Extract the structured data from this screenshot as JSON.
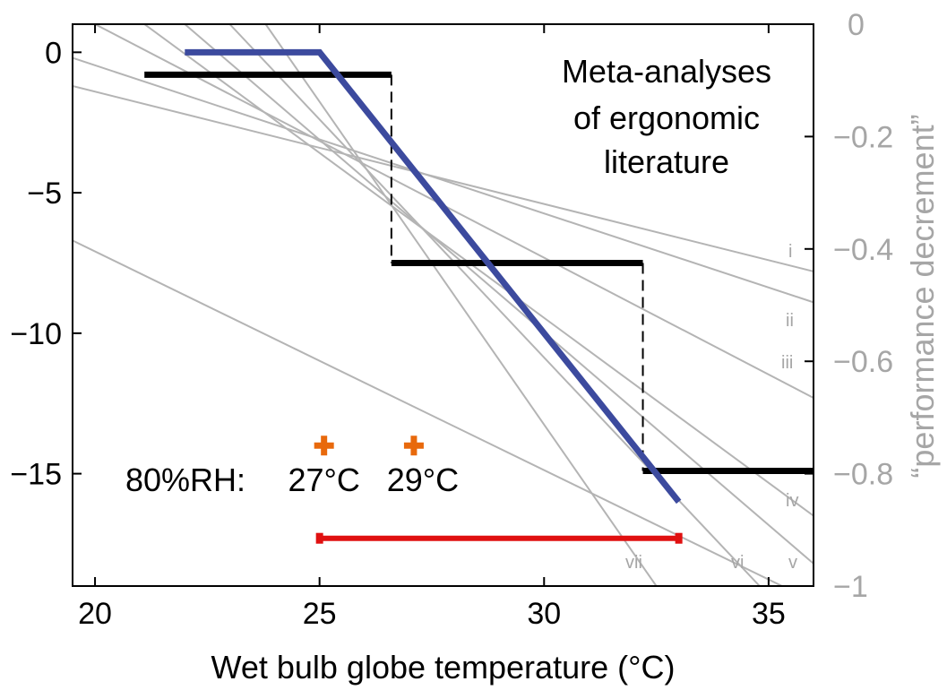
{
  "chart_data": {
    "type": "line",
    "title": "",
    "xlabel": "Wet bulb globe temperature (°C)",
    "ylabel_left": "",
    "ylabel_right": "“performance decrement”",
    "xlim": [
      19.5,
      36
    ],
    "ylim_left": [
      -19,
      1
    ],
    "ylim_right": [
      -1,
      0
    ],
    "x_ticks": [
      20,
      25,
      30,
      35
    ],
    "y_ticks_left": [
      0,
      -5,
      -10,
      -15
    ],
    "y_ticks_right": [
      0,
      -0.2,
      -0.4,
      -0.6,
      -0.8,
      -1
    ],
    "y_tick_labels_left": [
      "0",
      "−5",
      "−10",
      "−15"
    ],
    "y_tick_labels_right": [
      "0",
      "−0.2",
      "−0.4",
      "−0.6",
      "−0.8",
      "−1"
    ],
    "grid": false,
    "annotation": {
      "lines": [
        "Meta-analyses",
        "of ergonomic",
        "literature"
      ]
    },
    "rh_annotation": {
      "prefix": "80%RH:",
      "markers": [
        {
          "x": 25.1,
          "y": -14,
          "label": "27°C",
          "color": "#e8690c"
        },
        {
          "x": 27.1,
          "y": -14,
          "label": "29°C",
          "color": "#e8690c"
        }
      ]
    },
    "step_series": {
      "color": "#000000",
      "segments": [
        {
          "x": [
            21.1,
            26.6
          ],
          "y": -0.8
        },
        {
          "x": [
            26.6,
            32.2
          ],
          "y": -7.5
        },
        {
          "x": [
            32.2,
            36
          ],
          "y": -14.9
        }
      ]
    },
    "blue_series": {
      "color": "#3c4a9e",
      "x": [
        22,
        25,
        33
      ],
      "y": [
        0,
        0,
        -16
      ]
    },
    "red_range": {
      "color": "#e01010",
      "x": [
        25,
        33
      ],
      "y": -17.3
    },
    "gray_lines": {
      "color": "#b4b4b4",
      "lines": [
        {
          "label": "i",
          "x": [
            19.5,
            36
          ],
          "y": [
            -1.2,
            -7.8
          ]
        },
        {
          "label": "ii",
          "x": [
            19.5,
            36
          ],
          "y": [
            -0.2,
            -8.9
          ]
        },
        {
          "label": "iii",
          "x": [
            20.0,
            36
          ],
          "y": [
            1.0,
            -12.3
          ]
        },
        {
          "label": "iv",
          "x": [
            21.1,
            36
          ],
          "y": [
            1.0,
            -16.5
          ]
        },
        {
          "label": "v",
          "x": [
            22.0,
            36
          ],
          "y": [
            1.0,
            -18.2
          ]
        },
        {
          "label": "vi",
          "x": [
            23.0,
            34.8
          ],
          "y": [
            1.0,
            -19.0
          ]
        },
        {
          "label": "vii",
          "x": [
            23.8,
            32.5
          ],
          "y": [
            1.0,
            -19.0
          ]
        },
        {
          "label": "",
          "x": [
            19.5,
            35.3
          ],
          "y": [
            -6.7,
            -19.0
          ]
        }
      ]
    }
  }
}
